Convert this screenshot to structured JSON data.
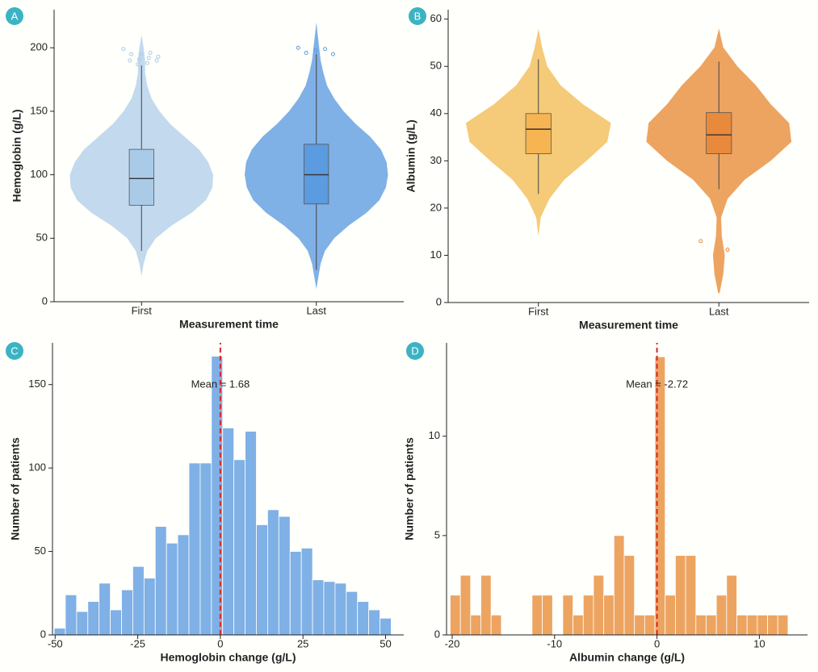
{
  "chart_data": [
    {
      "type": "violin",
      "panel": "A",
      "ylabel": "Hemoglobin (g/L)",
      "xlabel": "Measurement time",
      "categories": [
        "First",
        "Last"
      ],
      "ylim": [
        0,
        230
      ],
      "yticks": [
        0,
        50,
        100,
        150,
        200
      ],
      "violin_colors": [
        "#c2d9ee",
        "#7fb0e6"
      ],
      "box_colors": [
        "#a9cbe8",
        "#5b9be0"
      ],
      "violin_y": [
        10,
        20,
        30,
        40,
        50,
        60,
        70,
        80,
        90,
        100,
        110,
        120,
        130,
        140,
        150,
        160,
        170,
        180,
        190,
        200,
        210,
        220
      ],
      "violin_width": [
        [
          0,
          0,
          0.03,
          0.08,
          0.2,
          0.42,
          0.7,
          0.9,
          0.99,
          1.0,
          0.93,
          0.8,
          0.6,
          0.4,
          0.25,
          0.14,
          0.08,
          0.05,
          0.05,
          0.03,
          0,
          0
        ],
        [
          0,
          0.03,
          0.06,
          0.12,
          0.25,
          0.45,
          0.7,
          0.88,
          0.97,
          1.0,
          0.98,
          0.9,
          0.75,
          0.55,
          0.38,
          0.25,
          0.15,
          0.1,
          0.06,
          0.04,
          0.02,
          0
        ]
      ],
      "box": [
        {
          "q1": 76,
          "median": 97,
          "q3": 120,
          "whisker_low": 40,
          "whisker_high": 186,
          "outliers": [
            199,
            196,
            195,
            195,
            193,
            192,
            191,
            190,
            190,
            188,
            187
          ]
        },
        {
          "q1": 77,
          "median": 100,
          "q3": 124,
          "whisker_low": 25,
          "whisker_high": 195,
          "outliers": [
            200,
            199,
            198,
            196,
            195
          ]
        }
      ]
    },
    {
      "type": "violin",
      "panel": "B",
      "ylabel": "Albumin (g/L)",
      "xlabel": "Measurement time",
      "categories": [
        "First",
        "Last"
      ],
      "ylim": [
        0,
        62
      ],
      "yticks": [
        0,
        10,
        20,
        30,
        40,
        50,
        60
      ],
      "violin_colors": [
        "#f5ca78",
        "#eda461"
      ],
      "box_colors": [
        "#f6b552",
        "#e9893b"
      ],
      "violin_y": [
        2,
        6,
        10,
        14,
        18,
        22,
        26,
        30,
        34,
        38,
        42,
        46,
        50,
        54,
        58
      ],
      "violin_width": [
        [
          0,
          0,
          0,
          0,
          0.03,
          0.15,
          0.35,
          0.65,
          0.93,
          0.98,
          0.6,
          0.3,
          0.12,
          0.05,
          0
        ],
        [
          0.01,
          0.06,
          0.08,
          0.04,
          0.03,
          0.12,
          0.35,
          0.7,
          0.98,
          0.95,
          0.7,
          0.5,
          0.25,
          0.06,
          0
        ]
      ],
      "box": [
        {
          "q1": 31.5,
          "median": 36.7,
          "q3": 40,
          "whisker_low": 23,
          "whisker_high": 51.5,
          "outliers": []
        },
        {
          "q1": 31.5,
          "median": 35.5,
          "q3": 40.2,
          "whisker_low": 24,
          "whisker_high": 51,
          "outliers": [
            13,
            11.2
          ]
        }
      ]
    },
    {
      "type": "histogram",
      "panel": "C",
      "ylabel": "Number of patients",
      "xlabel": "Hemoglobin change (g/L)",
      "color": "#7fb0e6",
      "bins": [
        -50.3,
        -46.9,
        -43.5,
        -40.1,
        -36.7,
        -33.3,
        -29.9,
        -26.5,
        -23.1,
        -19.7,
        -16.3,
        -12.9,
        -9.5,
        -6.1,
        -2.7,
        0.7,
        4.1,
        7.5,
        10.9,
        14.3,
        17.7,
        21.1,
        24.5,
        27.9,
        31.3,
        34.7,
        38.1,
        41.5,
        44.9,
        48.3,
        51.7
      ],
      "values": [
        4,
        24,
        14,
        20,
        31,
        15,
        27,
        41,
        34,
        65,
        55,
        60,
        103,
        103,
        167,
        124,
        105,
        122,
        66,
        75,
        71,
        50,
        52,
        33,
        32,
        31,
        26,
        20,
        15,
        10
      ],
      "xlim": [
        -50.8,
        55.5
      ],
      "xticks": [
        -50,
        -25,
        0,
        25,
        50
      ],
      "ylim": [
        0,
        175
      ],
      "yticks": [
        0,
        50,
        100,
        150
      ],
      "vline_x": 0,
      "annotation": "Mean = 1.68"
    },
    {
      "type": "histogram",
      "panel": "D",
      "ylabel": "Number of patients",
      "xlabel": "Albumin change (g/L)",
      "color": "#eda461",
      "bins": [
        -20.2,
        -19.2,
        -18.2,
        -17.2,
        -16.2,
        -15.2,
        -14.2,
        -13.2,
        -12.2,
        -11.2,
        -10.2,
        -9.2,
        -8.2,
        -7.2,
        -6.2,
        -5.2,
        -4.2,
        -3.2,
        -2.2,
        -1.2,
        -0.2,
        0.8,
        1.8,
        2.8,
        3.8,
        4.8,
        5.8,
        6.8,
        7.8,
        8.8,
        9.8,
        10.8,
        11.8,
        12.8
      ],
      "values": [
        2,
        3,
        1,
        3,
        1,
        0,
        0,
        0,
        2,
        2,
        0,
        2,
        1,
        2,
        3,
        2,
        5,
        4,
        1,
        1,
        14,
        2,
        4,
        4,
        1,
        1,
        2,
        3,
        1,
        1,
        1,
        1,
        1
      ],
      "xlim": [
        -20.55,
        14.7
      ],
      "xticks": [
        -20,
        -10,
        0,
        10
      ],
      "ylim": [
        0,
        14.7
      ],
      "yticks": [
        0,
        5,
        10
      ],
      "vline_x": 0,
      "annotation": "Mean = -2.72"
    }
  ]
}
